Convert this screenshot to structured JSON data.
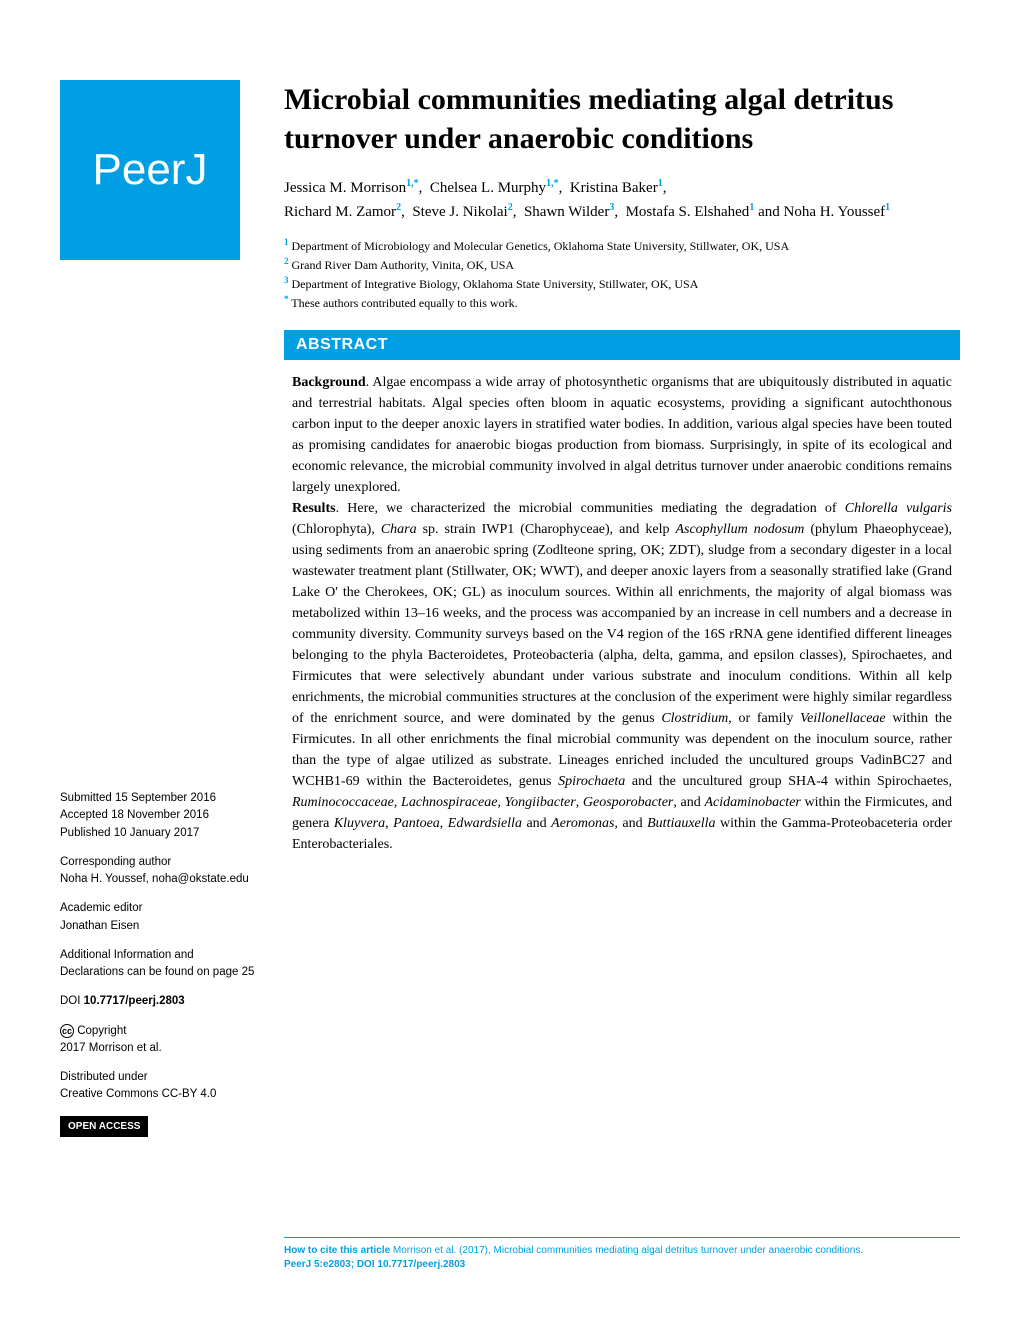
{
  "logo": "PeerJ",
  "title": "Microbial communities mediating algal detritus turnover under anaerobic conditions",
  "authors": [
    {
      "name": "Jessica M. Morrison",
      "aff": "1,*"
    },
    {
      "name": "Chelsea L. Murphy",
      "aff": "1,*"
    },
    {
      "name": "Kristina Baker",
      "aff": "1"
    },
    {
      "name": "Richard M. Zamor",
      "aff": "2"
    },
    {
      "name": "Steve J. Nikolai",
      "aff": "2"
    },
    {
      "name": "Shawn Wilder",
      "aff": "3"
    },
    {
      "name": "Mostafa S. Elshahed",
      "aff": "1"
    },
    {
      "name": "Noha H. Youssef",
      "aff": "1"
    }
  ],
  "affiliations": [
    {
      "num": "1",
      "text": "Department of Microbiology and Molecular Genetics, Oklahoma State University, Stillwater, OK, USA"
    },
    {
      "num": "2",
      "text": "Grand River Dam Authority, Vinita, OK, USA"
    },
    {
      "num": "3",
      "text": "Department of Integrative Biology, Oklahoma State University, Stillwater, OK, USA"
    },
    {
      "num": "*",
      "text": "These authors contributed equally to this work."
    }
  ],
  "abstract_header": "ABSTRACT",
  "abstract": {
    "background_label": "Background",
    "background_text": ". Algae encompass a wide array of photosynthetic organisms that are ubiquitously distributed in aquatic and terrestrial habitats. Algal species often bloom in aquatic ecosystems, providing a significant autochthonous carbon input to the deeper anoxic layers in stratified water bodies. In addition, various algal species have been touted as promising candidates for anaerobic biogas production from biomass. Surprisingly, in spite of its ecological and economic relevance, the microbial community involved in algal detritus turnover under anaerobic conditions remains largely unexplored.",
    "results_label": "Results",
    "results_text_1": ". Here, we characterized the microbial communities mediating the degradation of ",
    "italic_1": "Chlorella vulgaris",
    "results_text_2": " (Chlorophyta), ",
    "italic_2": "Chara",
    "results_text_3": " sp. strain IWP1 (Charophyceae), and kelp ",
    "italic_3": "Ascophyllum nodosum",
    "results_text_4": " (phylum Phaeophyceae), using sediments from an anaerobic spring (Zodlteone spring, OK; ZDT), sludge from a secondary digester in a local wastewater treatment plant (Stillwater, OK; WWT), and deeper anoxic layers from a seasonally stratified lake (Grand Lake O' the Cherokees, OK; GL) as inoculum sources. Within all enrichments, the majority of algal biomass was metabolized within 13–16 weeks, and the process was accompanied by an increase in cell numbers and a decrease in community diversity. Community surveys based on the V4 region of the 16S rRNA gene identified different lineages belonging to the phyla Bacteroidetes, Proteobacteria (alpha, delta, gamma, and epsilon classes), Spirochaetes, and Firmicutes that were selectively abundant under various substrate and inoculum conditions. Within all kelp enrichments, the microbial communities structures at the conclusion of the experiment were highly similar regardless of the enrichment source, and were dominated by the genus ",
    "italic_4": "Clostridium",
    "results_text_5": ", or family ",
    "italic_5": "Veillonellaceae",
    "results_text_6": " within the Firmicutes. In all other enrichments the final microbial community was dependent on the inoculum source, rather than the type of algae utilized as substrate. Lineages enriched included the uncultured groups VadinBC27 and WCHB1-69 within the Bacteroidetes, genus ",
    "italic_6": "Spirochaeta",
    "results_text_7": " and the uncultured group SHA-4 within Spirochaetes, ",
    "italic_7": "Ruminococcaceae",
    "comma_1": ", ",
    "italic_8": "Lachnospiraceae",
    "comma_2": ", ",
    "italic_9": "Yongiibacter",
    "comma_3": ", ",
    "italic_10": "Geosporobacter",
    "results_text_8": ", and ",
    "italic_11": "Acidaminobacter",
    "results_text_9": " within the Firmicutes, and genera ",
    "italic_12": "Kluyvera",
    "comma_4": ", ",
    "italic_13": "Pantoea",
    "comma_5": ", ",
    "italic_14": "Edwardsiella",
    "results_text_10": " and ",
    "italic_15": "Aeromonas,",
    "results_text_11": " and ",
    "italic_16": "Buttiauxella",
    "results_text_12": " within the Gamma-Proteobaceteria order Enterobacteriales."
  },
  "meta": {
    "submitted_label": "Submitted",
    "submitted_date": " 15 September 2016",
    "accepted_label": "Accepted",
    "accepted_date": " 18 November 2016",
    "published_label": "Published",
    "published_date": " 10 January 2017",
    "corr_label": "Corresponding author",
    "corr_value": "Noha H. Youssef, noha@okstate.edu",
    "editor_label": "Academic editor",
    "editor_value": "Jonathan Eisen",
    "addl_info": "Additional Information and Declarations can be found on page 25",
    "doi_label": "DOI",
    "doi_value": "10.7717/peerj.2803",
    "copyright_label": "Copyright",
    "copyright_value": "2017 Morrison et al.",
    "dist_label": "Distributed under",
    "dist_value": "Creative Commons CC-BY 4.0",
    "open_access": "OPEN ACCESS"
  },
  "citation": {
    "label": "How to cite this article",
    "text": " Morrison et al. (2017), Microbial communities mediating algal detritus turnover under anaerobic conditions.",
    "journal": "PeerJ",
    "ref": " 5:e2803; DOI 10.7717/peerj.2803"
  }
}
